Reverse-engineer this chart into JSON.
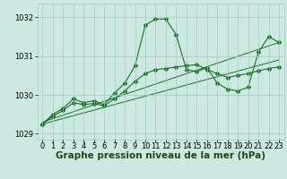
{
  "background_color": "#cce8e0",
  "grid_color": "#9ecec4",
  "line_color": "#1a6e2a",
  "xlabel": "Graphe pression niveau de la mer (hPa)",
  "ylim": [
    1028.85,
    1032.35
  ],
  "xlim": [
    -0.5,
    23.5
  ],
  "yticks": [
    1029,
    1030,
    1031,
    1032
  ],
  "xticks": [
    0,
    1,
    2,
    3,
    4,
    5,
    6,
    7,
    8,
    9,
    10,
    11,
    12,
    13,
    14,
    15,
    16,
    17,
    18,
    19,
    20,
    21,
    22,
    23
  ],
  "series_main": {
    "x": [
      0,
      1,
      2,
      3,
      4,
      5,
      6,
      7,
      8,
      9,
      10,
      11,
      12,
      13,
      14,
      15,
      16,
      17,
      18,
      19,
      20,
      21,
      22,
      23
    ],
    "y": [
      1029.25,
      1029.5,
      1029.65,
      1029.9,
      1029.8,
      1029.85,
      1029.75,
      1030.05,
      1030.3,
      1030.75,
      1031.8,
      1031.95,
      1031.95,
      1031.55,
      1030.65,
      1030.6,
      1030.7,
      1030.3,
      1030.15,
      1030.1,
      1030.2,
      1031.1,
      1031.5,
      1031.35
    ]
  },
  "series_smooth": {
    "x": [
      0,
      1,
      2,
      3,
      4,
      5,
      6,
      7,
      8,
      9,
      10,
      11,
      12,
      13,
      14,
      15,
      16,
      17,
      18,
      19,
      20,
      21,
      22,
      23
    ],
    "y": [
      1029.25,
      1029.45,
      1029.6,
      1029.8,
      1029.75,
      1029.78,
      1029.72,
      1029.9,
      1030.1,
      1030.35,
      1030.55,
      1030.65,
      1030.68,
      1030.72,
      1030.75,
      1030.78,
      1030.65,
      1030.55,
      1030.45,
      1030.5,
      1030.55,
      1030.62,
      1030.68,
      1030.72
    ]
  },
  "line1": {
    "x": [
      0,
      23
    ],
    "y": [
      1029.25,
      1030.9
    ]
  },
  "line2": {
    "x": [
      0,
      23
    ],
    "y": [
      1029.3,
      1031.35
    ]
  },
  "tick_fontsize": 6,
  "label_fontsize": 7.5
}
